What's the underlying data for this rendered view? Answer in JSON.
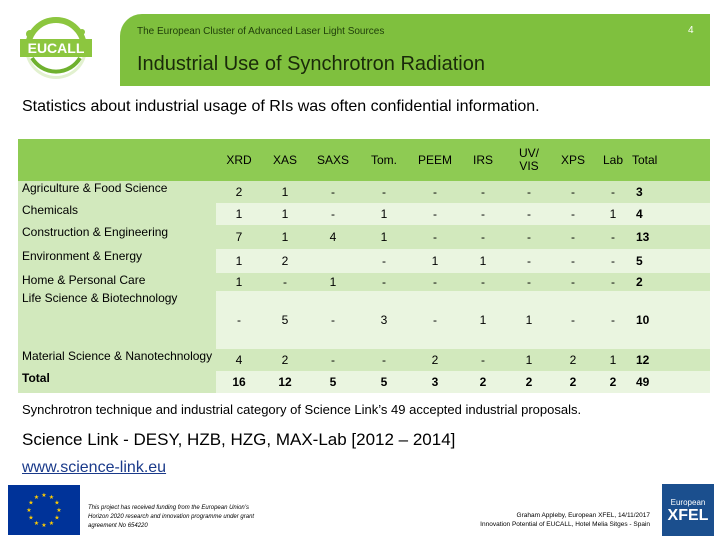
{
  "header": {
    "subtitle": "The European Cluster of Advanced Laser Light Sources",
    "page_number": "4",
    "title": "Industrial Use of Synchrotron Radiation",
    "logo_text": "EUCALL"
  },
  "intro": "Statistics about industrial usage of RIs was often confidential information.",
  "table": {
    "columns": [
      "XRD",
      "XAS",
      "SAXS",
      "Tom.",
      "PEEM",
      "IRS",
      "UV/ VIS",
      "XPS",
      "Lab",
      "Total"
    ],
    "rows": [
      {
        "label": "Agriculture & Food Science",
        "values": [
          "2",
          "1",
          "-",
          "-",
          "-",
          "-",
          "-",
          "-",
          "-",
          "3"
        ]
      },
      {
        "label": "Chemicals",
        "values": [
          "1",
          "1",
          "-",
          "1",
          "-",
          "-",
          "-",
          "-",
          "1",
          "4"
        ]
      },
      {
        "label": "Construction & Engineering",
        "values": [
          "7",
          "1",
          "4",
          "1",
          "-",
          "-",
          "-",
          "-",
          "-",
          "13"
        ]
      },
      {
        "label": "Environment & Energy",
        "values": [
          "1",
          "2",
          "",
          "-",
          "1",
          "1",
          "-",
          "-",
          "-",
          "5"
        ]
      },
      {
        "label": "Home & Personal Care",
        "values": [
          "1",
          "-",
          "1",
          "-",
          "-",
          "-",
          "-",
          "-",
          "-",
          "2"
        ]
      },
      {
        "label": "Life Science & Biotechnology",
        "values": [
          "-",
          "5",
          "-",
          "3",
          "-",
          "1",
          "1",
          "-",
          "-",
          "10"
        ]
      },
      {
        "label": "Material Science & Nanotechnology",
        "values": [
          "4",
          "2",
          "-",
          "-",
          "2",
          "-",
          "1",
          "2",
          "1",
          "12"
        ]
      },
      {
        "label": "Total",
        "values": [
          "16",
          "12",
          "5",
          "5",
          "3",
          "2",
          "2",
          "2",
          "2",
          "49"
        ]
      }
    ]
  },
  "caption": "Synchrotron technique and industrial category of Science Link’s 49 accepted industrial proposals.",
  "science_link": "Science Link - DESY, HZB, HZG, MAX-Lab [2012 – 2014]",
  "website": "www.science-link.eu",
  "footer": {
    "funding": "This project has received funding from the European Union’s Horizon 2020 research and innovation programme under grant agreement No 654220",
    "author_line1": "Graham Appleby, European XFEL, 14/11/2017",
    "author_line2": "Innovation Potential of EUCALL, Hotel Melia Sitges - Spain",
    "xfel_top": "European",
    "xfel_main": "XFEL"
  },
  "colors": {
    "header_green": "#7fc03e",
    "table_header": "#8ecb53",
    "row_dark": "#d2e9bd",
    "row_light": "#eaf5e0",
    "eu_blue": "#003399",
    "link_blue": "#1a3a8a"
  }
}
